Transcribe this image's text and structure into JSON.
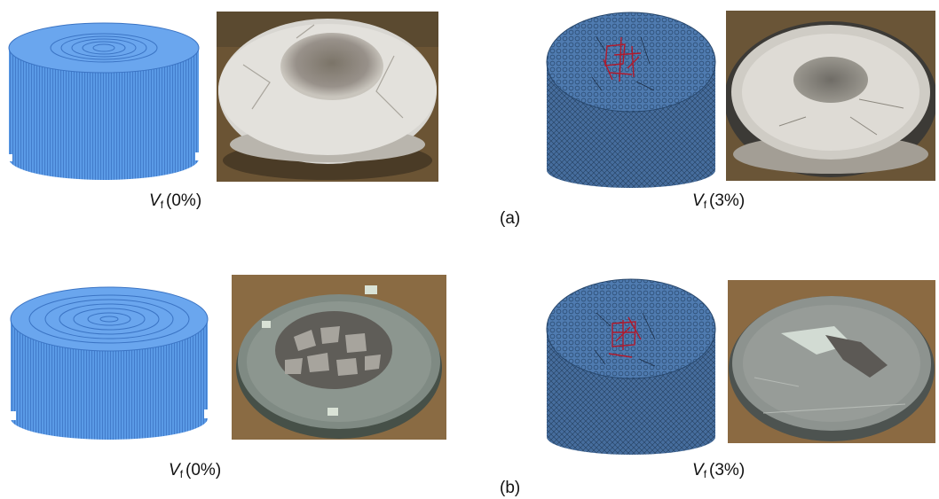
{
  "figure": {
    "rows": [
      {
        "label": "(a)",
        "left": {
          "var": "V",
          "sub": "f",
          "value": "(0%)"
        },
        "right": {
          "var": "V",
          "sub": "f",
          "value": "(3%)"
        }
      },
      {
        "label": "(b)",
        "left": {
          "var": "V",
          "sub": "f",
          "value": "(0%)"
        },
        "right": {
          "var": "V",
          "sub": "f",
          "value": "(3%)"
        }
      }
    ],
    "colors": {
      "model_blue": "#5b9be8",
      "mesh_blue": "#3a5f8f",
      "fiber_red": "#b01a2c",
      "soil_brown": "#7a5a37"
    }
  }
}
